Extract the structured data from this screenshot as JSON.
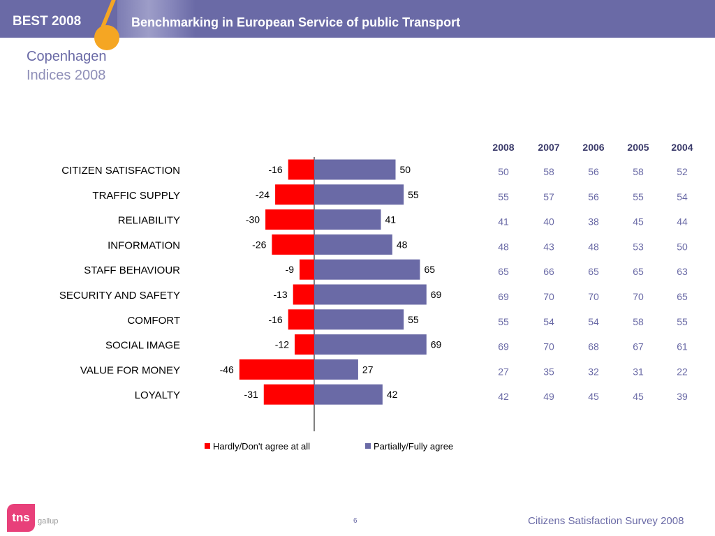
{
  "header": {
    "left_label": "BEST 2008",
    "title": "Benchmarking in European Service of public Transport"
  },
  "page": {
    "title": "Copenhagen",
    "subtitle": "Indices 2008"
  },
  "chart_data": {
    "type": "bar",
    "orientation": "horizontal-diverging",
    "categories": [
      "CITIZEN SATISFACTION",
      "TRAFFIC SUPPLY",
      "RELIABILITY",
      "INFORMATION",
      "STAFF BEHAVIOUR",
      "SECURITY AND SAFETY",
      "COMFORT",
      "SOCIAL IMAGE",
      "VALUE FOR MONEY",
      "LOYALTY"
    ],
    "series": [
      {
        "name": "Hardly/Don't agree at all",
        "color": "#ff0000",
        "values": [
          -16,
          -24,
          -30,
          -26,
          -9,
          -13,
          -16,
          -12,
          -46,
          -31
        ]
      },
      {
        "name": "Partially/Fully agree",
        "color": "#6a6aa6",
        "values": [
          50,
          55,
          41,
          48,
          65,
          69,
          55,
          69,
          27,
          42
        ]
      }
    ],
    "xlim": [
      -46,
      69
    ],
    "legend": "bottom",
    "table": {
      "columns": [
        "2008",
        "2007",
        "2006",
        "2005",
        "2004"
      ],
      "rows": [
        [
          50,
          58,
          56,
          58,
          52
        ],
        [
          55,
          57,
          56,
          55,
          54
        ],
        [
          41,
          40,
          38,
          45,
          44
        ],
        [
          48,
          43,
          48,
          53,
          50
        ],
        [
          65,
          66,
          65,
          65,
          63
        ],
        [
          69,
          70,
          70,
          70,
          65
        ],
        [
          55,
          54,
          54,
          58,
          55
        ],
        [
          69,
          70,
          68,
          67,
          61
        ],
        [
          27,
          35,
          32,
          31,
          22
        ],
        [
          42,
          49,
          45,
          45,
          39
        ]
      ]
    }
  },
  "footer": {
    "logo": "tns",
    "logo_sub": "gallup",
    "page_number": "6",
    "survey": "Citizens Satisfaction Survey 2008"
  }
}
